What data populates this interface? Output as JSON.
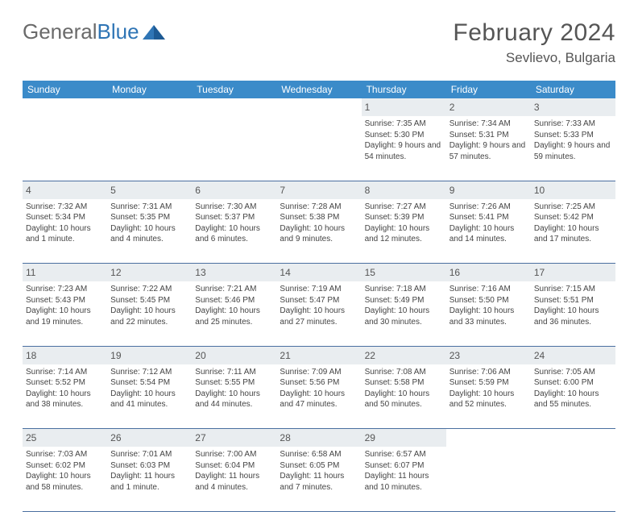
{
  "brand": {
    "part1": "General",
    "part2": "Blue",
    "color1": "#6a6a6a",
    "color2": "#2f75b5"
  },
  "title": "February 2024",
  "location": "Sevlievo, Bulgaria",
  "colors": {
    "header_bg": "#3b8bc9",
    "header_text": "#ffffff",
    "daynum_bg": "#e9edf0",
    "border": "#4a6fa0",
    "text": "#444444"
  },
  "day_headers": [
    "Sunday",
    "Monday",
    "Tuesday",
    "Wednesday",
    "Thursday",
    "Friday",
    "Saturday"
  ],
  "weeks": [
    [
      null,
      null,
      null,
      null,
      {
        "n": "1",
        "sr": "7:35 AM",
        "ss": "5:30 PM",
        "dl": "9 hours and 54 minutes."
      },
      {
        "n": "2",
        "sr": "7:34 AM",
        "ss": "5:31 PM",
        "dl": "9 hours and 57 minutes."
      },
      {
        "n": "3",
        "sr": "7:33 AM",
        "ss": "5:33 PM",
        "dl": "9 hours and 59 minutes."
      }
    ],
    [
      {
        "n": "4",
        "sr": "7:32 AM",
        "ss": "5:34 PM",
        "dl": "10 hours and 1 minute."
      },
      {
        "n": "5",
        "sr": "7:31 AM",
        "ss": "5:35 PM",
        "dl": "10 hours and 4 minutes."
      },
      {
        "n": "6",
        "sr": "7:30 AM",
        "ss": "5:37 PM",
        "dl": "10 hours and 6 minutes."
      },
      {
        "n": "7",
        "sr": "7:28 AM",
        "ss": "5:38 PM",
        "dl": "10 hours and 9 minutes."
      },
      {
        "n": "8",
        "sr": "7:27 AM",
        "ss": "5:39 PM",
        "dl": "10 hours and 12 minutes."
      },
      {
        "n": "9",
        "sr": "7:26 AM",
        "ss": "5:41 PM",
        "dl": "10 hours and 14 minutes."
      },
      {
        "n": "10",
        "sr": "7:25 AM",
        "ss": "5:42 PM",
        "dl": "10 hours and 17 minutes."
      }
    ],
    [
      {
        "n": "11",
        "sr": "7:23 AM",
        "ss": "5:43 PM",
        "dl": "10 hours and 19 minutes."
      },
      {
        "n": "12",
        "sr": "7:22 AM",
        "ss": "5:45 PM",
        "dl": "10 hours and 22 minutes."
      },
      {
        "n": "13",
        "sr": "7:21 AM",
        "ss": "5:46 PM",
        "dl": "10 hours and 25 minutes."
      },
      {
        "n": "14",
        "sr": "7:19 AM",
        "ss": "5:47 PM",
        "dl": "10 hours and 27 minutes."
      },
      {
        "n": "15",
        "sr": "7:18 AM",
        "ss": "5:49 PM",
        "dl": "10 hours and 30 minutes."
      },
      {
        "n": "16",
        "sr": "7:16 AM",
        "ss": "5:50 PM",
        "dl": "10 hours and 33 minutes."
      },
      {
        "n": "17",
        "sr": "7:15 AM",
        "ss": "5:51 PM",
        "dl": "10 hours and 36 minutes."
      }
    ],
    [
      {
        "n": "18",
        "sr": "7:14 AM",
        "ss": "5:52 PM",
        "dl": "10 hours and 38 minutes."
      },
      {
        "n": "19",
        "sr": "7:12 AM",
        "ss": "5:54 PM",
        "dl": "10 hours and 41 minutes."
      },
      {
        "n": "20",
        "sr": "7:11 AM",
        "ss": "5:55 PM",
        "dl": "10 hours and 44 minutes."
      },
      {
        "n": "21",
        "sr": "7:09 AM",
        "ss": "5:56 PM",
        "dl": "10 hours and 47 minutes."
      },
      {
        "n": "22",
        "sr": "7:08 AM",
        "ss": "5:58 PM",
        "dl": "10 hours and 50 minutes."
      },
      {
        "n": "23",
        "sr": "7:06 AM",
        "ss": "5:59 PM",
        "dl": "10 hours and 52 minutes."
      },
      {
        "n": "24",
        "sr": "7:05 AM",
        "ss": "6:00 PM",
        "dl": "10 hours and 55 minutes."
      }
    ],
    [
      {
        "n": "25",
        "sr": "7:03 AM",
        "ss": "6:02 PM",
        "dl": "10 hours and 58 minutes."
      },
      {
        "n": "26",
        "sr": "7:01 AM",
        "ss": "6:03 PM",
        "dl": "11 hours and 1 minute."
      },
      {
        "n": "27",
        "sr": "7:00 AM",
        "ss": "6:04 PM",
        "dl": "11 hours and 4 minutes."
      },
      {
        "n": "28",
        "sr": "6:58 AM",
        "ss": "6:05 PM",
        "dl": "11 hours and 7 minutes."
      },
      {
        "n": "29",
        "sr": "6:57 AM",
        "ss": "6:07 PM",
        "dl": "11 hours and 10 minutes."
      },
      null,
      null
    ]
  ],
  "labels": {
    "sunrise": "Sunrise: ",
    "sunset": "Sunset: ",
    "daylight": "Daylight: "
  }
}
